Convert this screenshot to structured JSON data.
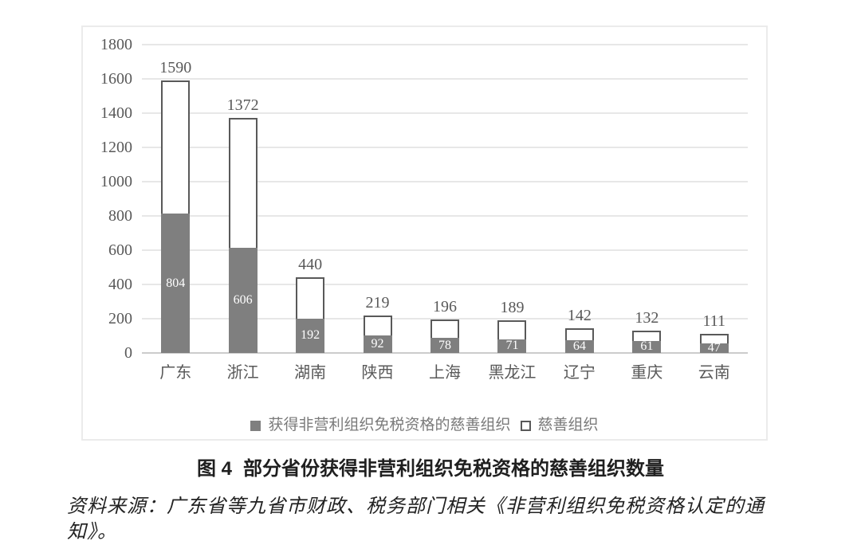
{
  "chart_data": {
    "type": "bar",
    "subtype": "overlapped (filled series drawn in front of open total bars)",
    "categories": [
      "广东",
      "浙江",
      "湖南",
      "陕西",
      "上海",
      "黑龙江",
      "辽宁",
      "重庆",
      "云南"
    ],
    "series": [
      {
        "name": "获得非营利组织免税资格的慈善组织",
        "style": "filled-gray",
        "values": [
          804,
          606,
          192,
          92,
          78,
          71,
          64,
          61,
          47
        ]
      },
      {
        "name": "慈善组织",
        "style": "open-white",
        "values": [
          1590,
          1372,
          440,
          219,
          196,
          189,
          142,
          132,
          111
        ]
      }
    ],
    "ylim": [
      0,
      1800
    ],
    "yticks": [
      0,
      200,
      400,
      600,
      800,
      1000,
      1200,
      1400,
      1600,
      1800
    ],
    "grid": true,
    "legend_position": "bottom"
  },
  "caption": {
    "figure_label": "图 4",
    "title": "部分省份获得非营利组织免税资格的慈善组织数量"
  },
  "source_note": "资料来源：广东省等九省市财政、税务部门相关《非营利组织免税资格认定的通知》。",
  "colors": {
    "bar_fill": "#7f7f7f",
    "bar_border": "#595959",
    "bar_value_text": "#ffffff",
    "axis_text": "#595959",
    "gridline": "#e7e7e7",
    "baseline": "#cccccc",
    "box_border": "#ebebeb",
    "legend_text": "#7a7a7a",
    "caption_text": "#1f1f1f",
    "source_text": "#222222"
  }
}
